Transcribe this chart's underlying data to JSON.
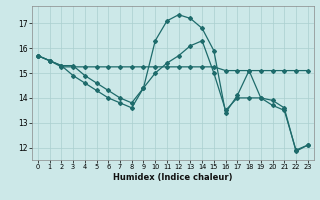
{
  "xlabel": "Humidex (Indice chaleur)",
  "background_color": "#cce8e8",
  "line_color": "#1e6b6b",
  "grid_color": "#aacfcf",
  "xlim": [
    -0.5,
    23.5
  ],
  "ylim": [
    11.5,
    17.7
  ],
  "yticks": [
    12,
    13,
    14,
    15,
    16,
    17
  ],
  "xticks": [
    0,
    1,
    2,
    3,
    4,
    5,
    6,
    7,
    8,
    9,
    10,
    11,
    12,
    13,
    14,
    15,
    16,
    17,
    18,
    19,
    20,
    21,
    22,
    23
  ],
  "line1_x": [
    0,
    1,
    2,
    3,
    4,
    5,
    6,
    7,
    8,
    9,
    10,
    11,
    12,
    13,
    14,
    15,
    16,
    17,
    18,
    19,
    20,
    21,
    22,
    23
  ],
  "line1_y": [
    15.7,
    15.5,
    15.3,
    14.9,
    14.6,
    14.3,
    14.0,
    13.8,
    13.6,
    14.4,
    16.3,
    17.1,
    17.35,
    17.2,
    16.8,
    15.9,
    13.4,
    14.1,
    15.1,
    14.0,
    13.9,
    13.6,
    11.85,
    12.1
  ],
  "line2_x": [
    0,
    1,
    2,
    3,
    4,
    5,
    6,
    7,
    8,
    9,
    10,
    11,
    12,
    13,
    14,
    15,
    16,
    17,
    18,
    19,
    20,
    21,
    22,
    23
  ],
  "line2_y": [
    15.7,
    15.5,
    15.25,
    15.25,
    15.25,
    15.25,
    15.25,
    15.25,
    15.25,
    15.25,
    15.25,
    15.25,
    15.25,
    15.25,
    15.25,
    15.25,
    15.1,
    15.1,
    15.1,
    15.1,
    15.1,
    15.1,
    15.1,
    15.1
  ],
  "line3_x": [
    0,
    1,
    2,
    3,
    4,
    5,
    6,
    7,
    8,
    9,
    10,
    11,
    12,
    13,
    14,
    15,
    16,
    17,
    18,
    19,
    20,
    21,
    22,
    23
  ],
  "line3_y": [
    15.7,
    15.5,
    15.3,
    15.3,
    14.9,
    14.6,
    14.3,
    14.0,
    13.8,
    14.4,
    15.0,
    15.4,
    15.7,
    16.1,
    16.3,
    15.0,
    13.5,
    14.0,
    14.0,
    14.0,
    13.7,
    13.5,
    11.9,
    12.1
  ]
}
